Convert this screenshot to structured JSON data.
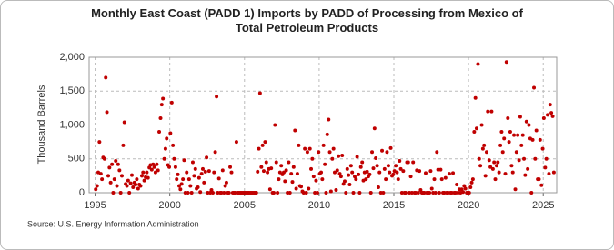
{
  "chart_data": {
    "type": "scatter",
    "title": "Monthly East Coast (PADD 1) Imports by PADD of Processing from Mexico of Total Petroleum Products",
    "y_label": "Thousand Barrels",
    "source": "Source: U.S. Energy Information Administration",
    "color": "#c00000",
    "grid": true,
    "xlim": [
      1994.6,
      2025.9
    ],
    "ylim": [
      0,
      2000
    ],
    "xticks": [
      1995,
      2000,
      2005,
      2010,
      2015,
      2020,
      2025
    ],
    "yticks": [
      0,
      500,
      {
        "value": 1000,
        "label": "1,000"
      },
      {
        "value": 1500,
        "label": "1,500"
      },
      {
        "value": 2000,
        "label": "2,000"
      }
    ],
    "x": [
      1995.04,
      1995.13,
      1995.21,
      1995.29,
      1995.38,
      1995.46,
      1995.54,
      1995.63,
      1995.71,
      1995.79,
      1995.88,
      1995.96,
      1996.04,
      1996.13,
      1996.21,
      1996.29,
      1996.38,
      1996.46,
      1996.54,
      1996.63,
      1996.71,
      1996.79,
      1996.88,
      1996.96,
      1997.04,
      1997.13,
      1997.21,
      1997.29,
      1997.38,
      1997.46,
      1997.54,
      1997.63,
      1997.71,
      1997.79,
      1997.88,
      1997.96,
      1998.04,
      1998.13,
      1998.21,
      1998.29,
      1998.38,
      1998.46,
      1998.54,
      1998.63,
      1998.71,
      1998.79,
      1998.88,
      1998.96,
      1999.04,
      1999.13,
      1999.21,
      1999.29,
      1999.38,
      1999.46,
      1999.54,
      1999.63,
      1999.71,
      1999.79,
      1999.88,
      1999.96,
      2000.04,
      2000.13,
      2000.21,
      2000.29,
      2000.38,
      2000.46,
      2000.54,
      2000.63,
      2000.71,
      2000.79,
      2000.88,
      2000.96,
      2001.04,
      2001.13,
      2001.21,
      2001.29,
      2001.38,
      2001.46,
      2001.54,
      2001.63,
      2001.71,
      2001.79,
      2001.88,
      2001.96,
      2002.04,
      2002.13,
      2002.21,
      2002.29,
      2002.38,
      2002.46,
      2002.54,
      2002.63,
      2002.71,
      2002.79,
      2002.88,
      2002.96,
      2003.04,
      2003.13,
      2003.21,
      2003.29,
      2003.38,
      2003.46,
      2003.54,
      2003.63,
      2003.71,
      2003.79,
      2003.88,
      2003.96,
      2004.04,
      2004.13,
      2004.21,
      2004.29,
      2004.38,
      2004.46,
      2004.54,
      2004.63,
      2004.71,
      2004.79,
      2004.88,
      2004.96,
      2005.04,
      2005.13,
      2005.21,
      2005.29,
      2005.38,
      2005.46,
      2005.54,
      2005.63,
      2005.71,
      2005.79,
      2005.88,
      2005.96,
      2006.04,
      2006.13,
      2006.21,
      2006.29,
      2006.38,
      2006.46,
      2006.54,
      2006.63,
      2006.71,
      2006.79,
      2006.88,
      2006.96,
      2007.04,
      2007.13,
      2007.21,
      2007.29,
      2007.38,
      2007.46,
      2007.54,
      2007.63,
      2007.71,
      2007.79,
      2007.88,
      2007.96,
      2008.04,
      2008.13,
      2008.21,
      2008.29,
      2008.38,
      2008.46,
      2008.54,
      2008.63,
      2008.71,
      2008.79,
      2008.88,
      2008.96,
      2009.04,
      2009.13,
      2009.21,
      2009.29,
      2009.38,
      2009.46,
      2009.54,
      2009.63,
      2009.71,
      2009.79,
      2009.88,
      2009.96,
      2010.04,
      2010.13,
      2010.21,
      2010.29,
      2010.38,
      2010.46,
      2010.54,
      2010.63,
      2010.71,
      2010.79,
      2010.88,
      2010.96,
      2011.04,
      2011.13,
      2011.21,
      2011.29,
      2011.38,
      2011.46,
      2011.54,
      2011.63,
      2011.71,
      2011.79,
      2011.88,
      2011.96,
      2012.04,
      2012.13,
      2012.21,
      2012.29,
      2012.38,
      2012.46,
      2012.54,
      2012.63,
      2012.71,
      2012.79,
      2012.88,
      2012.96,
      2013.04,
      2013.13,
      2013.21,
      2013.29,
      2013.38,
      2013.46,
      2013.54,
      2013.63,
      2013.71,
      2013.79,
      2013.88,
      2013.96,
      2014.04,
      2014.13,
      2014.21,
      2014.29,
      2014.38,
      2014.46,
      2014.54,
      2014.63,
      2014.71,
      2014.79,
      2014.88,
      2014.96,
      2015.04,
      2015.13,
      2015.21,
      2015.29,
      2015.38,
      2015.46,
      2015.54,
      2015.63,
      2015.71,
      2015.79,
      2015.88,
      2015.96,
      2016.04,
      2016.13,
      2016.21,
      2016.29,
      2016.38,
      2016.46,
      2016.54,
      2016.63,
      2016.71,
      2016.79,
      2016.88,
      2016.96,
      2017.04,
      2017.13,
      2017.21,
      2017.29,
      2017.38,
      2017.46,
      2017.54,
      2017.63,
      2017.71,
      2017.79,
      2017.88,
      2017.96,
      2018.04,
      2018.13,
      2018.21,
      2018.29,
      2018.38,
      2018.46,
      2018.54,
      2018.63,
      2018.71,
      2018.79,
      2018.88,
      2018.96,
      2019.04,
      2019.13,
      2019.21,
      2019.29,
      2019.38,
      2019.46,
      2019.54,
      2019.63,
      2019.71,
      2019.79,
      2019.88,
      2019.96,
      2020.04,
      2020.13,
      2020.21,
      2020.29,
      2020.38,
      2020.46,
      2020.54,
      2020.63,
      2020.71,
      2020.79,
      2020.88,
      2020.96,
      2021.04,
      2021.13,
      2021.21,
      2021.29,
      2021.38,
      2021.46,
      2021.54,
      2021.63,
      2021.71,
      2021.79,
      2021.88,
      2021.96,
      2022.04,
      2022.13,
      2022.21,
      2022.29,
      2022.38,
      2022.46,
      2022.54,
      2022.63,
      2022.71,
      2022.79,
      2022.88,
      2022.96,
      2023.04,
      2023.13,
      2023.21,
      2023.29,
      2023.38,
      2023.46,
      2023.54,
      2023.63,
      2023.71,
      2023.79,
      2023.88,
      2023.96,
      2024.04,
      2024.13,
      2024.21,
      2024.29,
      2024.38,
      2024.46,
      2024.54,
      2024.63,
      2024.71,
      2024.79,
      2024.88,
      2024.96,
      2025.04,
      2025.13,
      2025.21,
      2025.29,
      2025.38,
      2025.46,
      2025.54,
      2025.63,
      2025.71
    ],
    "values": [
      50,
      100,
      300,
      750,
      280,
      200,
      520,
      500,
      1700,
      1190,
      250,
      370,
      150,
      420,
      0,
      200,
      470,
      100,
      420,
      330,
      0,
      250,
      700,
      1040,
      130,
      100,
      180,
      0,
      140,
      260,
      80,
      150,
      120,
      200,
      60,
      120,
      100,
      250,
      300,
      180,
      230,
      300,
      220,
      370,
      410,
      340,
      420,
      380,
      300,
      420,
      330,
      900,
      1100,
      1300,
      1390,
      500,
      650,
      800,
      410,
      380,
      880,
      1330,
      700,
      500,
      380,
      200,
      270,
      100,
      50,
      130,
      200,
      480,
      0,
      300,
      0,
      200,
      100,
      0,
      450,
      250,
      350,
      60,
      80,
      220,
      10,
      280,
      350,
      150,
      310,
      520,
      0,
      320,
      0,
      40,
      0,
      300,
      600,
      1420,
      0,
      210,
      0,
      0,
      330,
      0,
      100,
      150,
      0,
      0,
      380,
      300,
      0,
      0,
      0,
      750,
      0,
      0,
      0,
      0,
      0,
      0,
      0,
      0,
      0,
      0,
      0,
      0,
      0,
      0,
      0,
      0,
      310,
      650,
      1470,
      380,
      700,
      320,
      750,
      450,
      300,
      350,
      50,
      360,
      0,
      0,
      1000,
      450,
      0,
      200,
      300,
      400,
      270,
      300,
      170,
      330,
      0,
      450,
      0,
      280,
      160,
      380,
      920,
      60,
      280,
      700,
      100,
      90,
      20,
      0,
      650,
      0,
      600,
      60,
      650,
      350,
      500,
      240,
      0,
      180,
      0,
      600,
      280,
      300,
      200,
      700,
      420,
      0,
      860,
      1080,
      600,
      20,
      500,
      650,
      300,
      40,
      330,
      540,
      280,
      240,
      550,
      130,
      170,
      0,
      350,
      260,
      120,
      400,
      300,
      0,
      240,
      200,
      530,
      270,
      0,
      380,
      450,
      180,
      300,
      200,
      310,
      240,
      270,
      0,
      600,
      360,
      950,
      510,
      400,
      80,
      300,
      0,
      620,
      0,
      350,
      200,
      600,
      400,
      300,
      660,
      250,
      270,
      320,
      400,
      300,
      200,
      470,
      350,
      0,
      320,
      0,
      0,
      450,
      450,
      0,
      240,
      0,
      450,
      0,
      0,
      330,
      0,
      320,
      40,
      0,
      0,
      0,
      290,
      0,
      0,
      0,
      320,
      60,
      0,
      200,
      0,
      600,
      340,
      0,
      340,
      200,
      0,
      0,
      220,
      0,
      0,
      280,
      0,
      0,
      290,
      0,
      0,
      120,
      0,
      50,
      0,
      50,
      10,
      100,
      60,
      0,
      0,
      0,
      80,
      150,
      200,
      900,
      1400,
      950,
      1900,
      500,
      400,
      1000,
      650,
      700,
      250,
      600,
      1200,
      480,
      380,
      1200,
      350,
      450,
      200,
      400,
      450,
      300,
      700,
      900,
      600,
      800,
      280,
      1930,
      1100,
      750,
      900,
      400,
      300,
      850,
      50,
      600,
      850,
      480,
      1120,
      700,
      850,
      500,
      260,
      1050,
      350,
      1000,
      800,
      0,
      780,
      1550,
      500,
      920,
      200,
      200,
      780,
      110,
      650,
      1100,
      370,
      500,
      1150,
      280,
      1300,
      1180,
      1130,
      300
    ]
  }
}
